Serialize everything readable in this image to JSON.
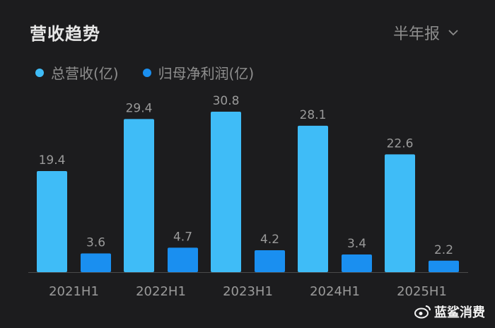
{
  "header": {
    "title": "营收趋势",
    "period_label": "半年报"
  },
  "colors": {
    "revenue": "#3fbcf7",
    "profit": "#1a8ff0",
    "axis": "#4a4a4a",
    "label": "#9a9a9a"
  },
  "watermark": "蓝鲨消费",
  "chart_data": {
    "type": "bar",
    "title": "营收趋势",
    "xlabel": "",
    "ylabel": "",
    "categories": [
      "2021H1",
      "2022H1",
      "2023H1",
      "2024H1",
      "2025H1"
    ],
    "series": [
      {
        "name": "总营收(亿)",
        "values": [
          19.4,
          29.4,
          30.8,
          28.1,
          22.6
        ]
      },
      {
        "name": "归母净利润(亿)",
        "values": [
          3.6,
          4.7,
          4.2,
          3.4,
          2.2
        ]
      }
    ],
    "ylim": [
      0,
      30.8
    ],
    "grid": false,
    "legend": "top-left"
  }
}
